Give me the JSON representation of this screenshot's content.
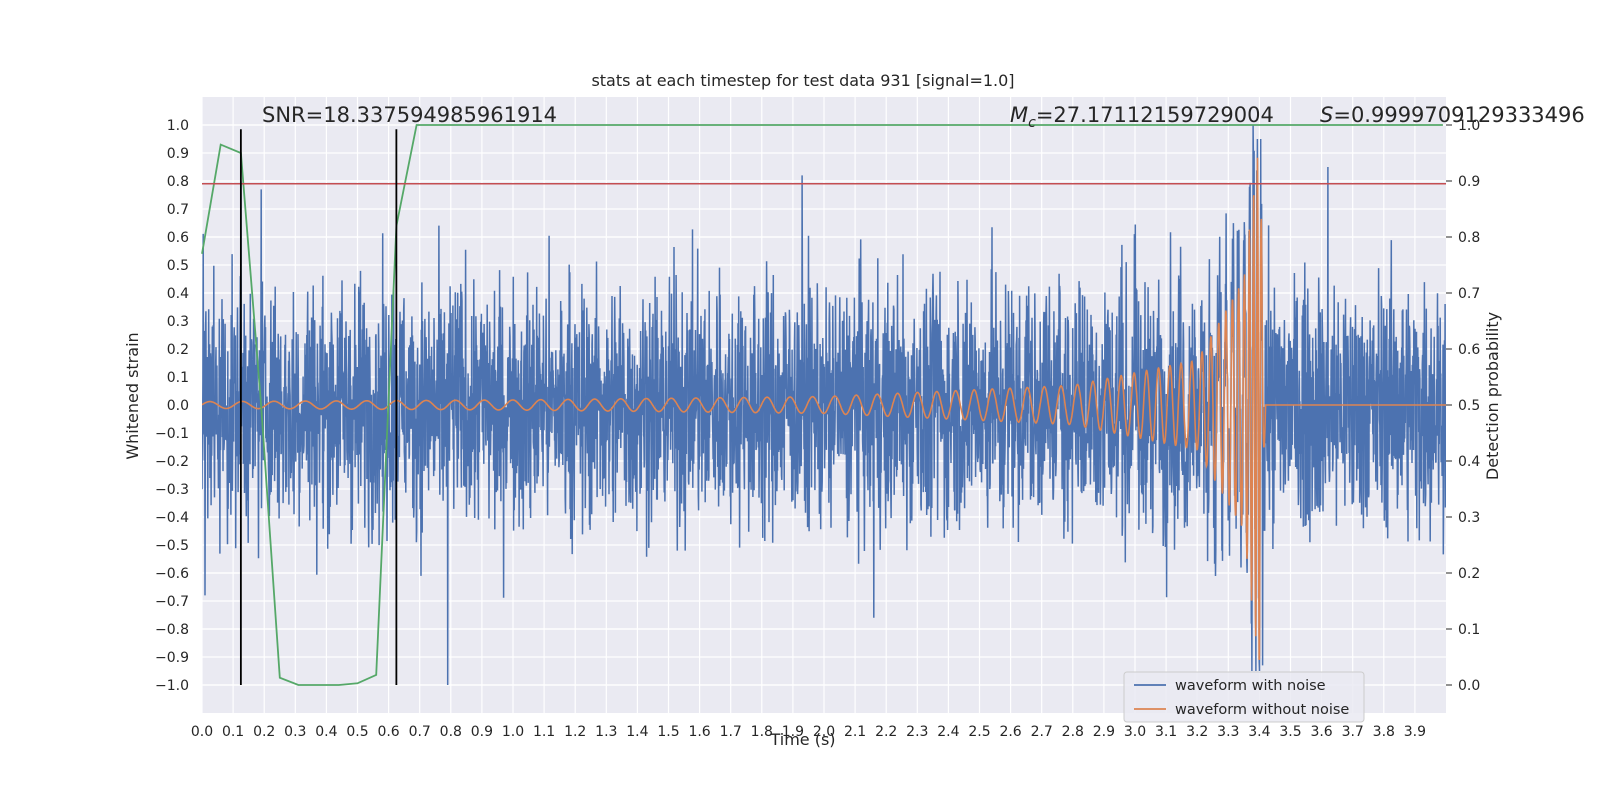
{
  "chart_data": {
    "type": "line",
    "title": "stats at each timestep for test data 931 [signal=1.0]",
    "xlabel": "Time (s)",
    "ylabel": "Whitened strain",
    "y2label": "Detection probability",
    "xlim": [
      0.0,
      4.0
    ],
    "ylim": [
      -1.1,
      1.1
    ],
    "y2lim": [
      -0.05,
      1.05
    ],
    "x_ticks": [
      0.0,
      0.1,
      0.2,
      0.3,
      0.4,
      0.5,
      0.6,
      0.7,
      0.8,
      0.9,
      1.0,
      1.1,
      1.2,
      1.3,
      1.4,
      1.5,
      1.6,
      1.7,
      1.8,
      1.9,
      2.0,
      2.1,
      2.2,
      2.3,
      2.4,
      2.5,
      2.6,
      2.7,
      2.8,
      2.9,
      3.0,
      3.1,
      3.2,
      3.3,
      3.4,
      3.5,
      3.6,
      3.7,
      3.8,
      3.9
    ],
    "x_tick_labels": [
      "0.0",
      "0.1",
      "0.2",
      "0.3",
      "0.4",
      "0.5",
      "0.6",
      "0.7",
      "0.8",
      "0.9",
      "1.0",
      "1.1",
      "1.2",
      "1.3",
      "1.4",
      "1.5",
      "1.6",
      "1.7",
      "1.8",
      "1.9",
      "2.0",
      "2.1",
      "2.2",
      "2.3",
      "2.4",
      "2.5",
      "2.6",
      "2.7",
      "2.8",
      "2.9",
      "3.0",
      "3.1",
      "3.2",
      "3.3",
      "3.4",
      "3.5",
      "3.6",
      "3.7",
      "3.8",
      "3.9"
    ],
    "y_ticks": [
      1.0,
      0.9,
      0.8,
      0.7,
      0.6,
      0.5,
      0.4,
      0.3,
      0.2,
      0.1,
      0.0,
      -0.1,
      -0.2,
      -0.3,
      -0.4,
      -0.5,
      -0.6,
      -0.7,
      -0.8,
      -0.9,
      -1.0
    ],
    "y_tick_labels": [
      "1.0",
      "0.9",
      "0.8",
      "0.7",
      "0.6",
      "0.5",
      "0.4",
      "0.3",
      "0.2",
      "0.1",
      "0.0",
      "−0.1",
      "−0.2",
      "−0.3",
      "−0.4",
      "−0.5",
      "−0.6",
      "−0.7",
      "−0.8",
      "−0.9",
      "−1.0"
    ],
    "y2_ticks": [
      1.0,
      0.9,
      0.8,
      0.7,
      0.6,
      0.5,
      0.4,
      0.3,
      0.2,
      0.1,
      0.0
    ],
    "y2_tick_labels": [
      "1.0",
      "0.9",
      "0.8",
      "0.7",
      "0.6",
      "0.5",
      "0.4",
      "0.3",
      "0.2",
      "0.1",
      "0.0"
    ],
    "series": [
      {
        "name": "waveform with noise",
        "color": "#4c72b0",
        "sample_rate_hz": 1024,
        "amplitude_envelope": 0.55,
        "peak_values": [
          {
            "x": 0.01,
            "y": -0.68
          },
          {
            "x": 0.125,
            "y": 0.8
          },
          {
            "x": 0.19,
            "y": 0.77
          },
          {
            "x": 0.79,
            "y": -1.0
          },
          {
            "x": 1.93,
            "y": 0.82
          },
          {
            "x": 2.16,
            "y": -0.76
          },
          {
            "x": 3.38,
            "y": 1.0
          },
          {
            "x": 3.41,
            "y": -0.93
          },
          {
            "x": 3.62,
            "y": 0.85
          }
        ]
      },
      {
        "name": "waveform without noise",
        "color": "#dd8452",
        "model": "chirp",
        "merger_time": 3.4,
        "values": [
          {
            "x": 0.0,
            "amplitude": 0.012,
            "frequency_hz": 9.5
          },
          {
            "x": 1.0,
            "amplitude": 0.018,
            "frequency_hz": 11
          },
          {
            "x": 2.0,
            "amplitude": 0.03,
            "frequency_hz": 14
          },
          {
            "x": 2.8,
            "amplitude": 0.07,
            "frequency_hz": 19
          },
          {
            "x": 3.2,
            "amplitude": 0.16,
            "frequency_hz": 30
          },
          {
            "x": 3.35,
            "amplitude": 0.45,
            "frequency_hz": 55
          },
          {
            "x": 3.4,
            "amplitude": 0.95,
            "frequency_hz": 90
          },
          {
            "x": 3.42,
            "amplitude": 0.0,
            "frequency_hz": 0
          },
          {
            "x": 4.0,
            "amplitude": 0.0,
            "frequency_hz": 0
          }
        ]
      },
      {
        "name": "detection probability",
        "color": "#55a868",
        "axis": "y2",
        "points": [
          {
            "x": 0.0,
            "y": 0.77
          },
          {
            "x": 0.06,
            "y": 0.965
          },
          {
            "x": 0.125,
            "y": 0.95
          },
          {
            "x": 0.19,
            "y": 0.5
          },
          {
            "x": 0.25,
            "y": 0.013
          },
          {
            "x": 0.31,
            "y": 0.0
          },
          {
            "x": 0.375,
            "y": 0.0
          },
          {
            "x": 0.44,
            "y": 0.0
          },
          {
            "x": 0.5,
            "y": 0.003
          },
          {
            "x": 0.56,
            "y": 0.018
          },
          {
            "x": 0.625,
            "y": 0.82
          },
          {
            "x": 0.69,
            "y": 1.0
          },
          {
            "x": 3.99,
            "y": 1.0
          }
        ]
      }
    ],
    "hlines": [
      {
        "y": 0.79,
        "axis": "y",
        "color": "#c44e52"
      }
    ],
    "vlines": [
      {
        "x": 0.125,
        "y": [
          -1.0,
          0.985
        ],
        "color": "#000000"
      },
      {
        "x": 0.625,
        "y": [
          -1.0,
          0.985
        ],
        "color": "#000000"
      }
    ],
    "annotations": [
      {
        "key": "snr",
        "text": "SNR=18.337594985961914"
      },
      {
        "key": "mc_symbol",
        "text": "M",
        "subscript": "c",
        "value_text": "=27.17112159729004"
      },
      {
        "key": "s",
        "symbol": "S",
        "value_text": "=0.9999709129333496"
      }
    ],
    "legend": {
      "placement": "lower-right",
      "entries": [
        "waveform with noise",
        "waveform without noise"
      ]
    },
    "grid": true,
    "background_color": "#eaeaf2"
  }
}
